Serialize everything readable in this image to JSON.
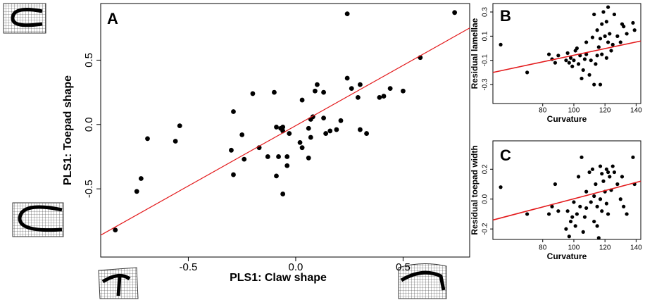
{
  "chart_data": [
    {
      "type": "scatter",
      "label": "A",
      "xlabel": "PLS1: Claw shape",
      "ylabel": "PLS1: Toepad shape",
      "color": "#000000",
      "xlim": [
        -0.908,
        0.81
      ],
      "ylim": [
        -1.03,
        0.94
      ],
      "xticks": [
        -0.5,
        {
          "value": 0,
          "label": "0.0"
        },
        0.5
      ],
      "yticks": [
        -0.5,
        {
          "value": 0,
          "label": "0.0"
        },
        0.5
      ],
      "x": [
        -0.84,
        -0.74,
        -0.72,
        -0.69,
        -0.54,
        -0.56,
        -0.29,
        -0.2,
        -0.1,
        -0.3,
        -0.29,
        -0.25,
        -0.24,
        -0.17,
        -0.13,
        -0.09,
        -0.07,
        -0.06,
        -0.06,
        -0.09,
        -0.08,
        -0.06,
        -0.04,
        -0.03,
        -0.04,
        0.03,
        0.07,
        0.08,
        0.02,
        0.03,
        0.06,
        0.06,
        0.07,
        0.09,
        0.1,
        0.13,
        0.13,
        0.14,
        0.16,
        0.19,
        0.21,
        0.24,
        0.26,
        0.29,
        0.3,
        0.3,
        0.33,
        0.39,
        0.41,
        0.44,
        0.5,
        0.58,
        0.24,
        0.74
      ],
      "values": [
        -0.82,
        -0.52,
        -0.42,
        -0.11,
        -0.01,
        -0.13,
        0.1,
        0.24,
        0.25,
        -0.2,
        -0.39,
        -0.08,
        -0.27,
        -0.18,
        -0.25,
        -0.02,
        -0.03,
        -0.05,
        -0.02,
        -0.4,
        -0.25,
        -0.54,
        -0.25,
        -0.07,
        -0.32,
        0.19,
        -0.1,
        0.06,
        -0.14,
        -0.18,
        -0.26,
        -0.03,
        0.04,
        0.26,
        0.31,
        0.05,
        0.25,
        -0.07,
        -0.05,
        -0.04,
        0.03,
        0.36,
        0.28,
        0.21,
        -0.04,
        0.31,
        -0.07,
        0.21,
        0.22,
        0.28,
        0.26,
        0.52,
        0.86,
        0.87
      ],
      "fit_line": {
        "x": [
          -0.908,
          0.81
        ],
        "y": [
          -0.86,
          0.75
        ],
        "color": "#e31a1c"
      }
    },
    {
      "type": "scatter",
      "label": "B",
      "xlabel": "Curvature",
      "ylabel": "Residual lamellae",
      "color": "#000000",
      "xlim": [
        48,
        143
      ],
      "ylim": [
        -0.457,
        0.37
      ],
      "xticks": [
        80,
        100,
        120,
        140
      ],
      "yticks": [
        -0.3,
        -0.1,
        0.1,
        0.3
      ],
      "x": [
        53,
        70,
        84,
        86,
        88,
        90,
        95,
        96,
        97,
        98,
        99,
        100,
        101,
        102,
        103,
        104,
        105,
        106,
        107,
        108,
        108,
        110,
        111,
        112,
        113,
        113,
        114,
        115,
        115,
        116,
        117,
        117,
        118,
        118,
        119,
        120,
        121,
        121,
        122,
        122,
        123,
        124,
        125,
        126,
        128,
        130,
        131,
        132,
        134,
        138,
        139
      ],
      "values": [
        0.03,
        -0.2,
        -0.05,
        -0.09,
        -0.12,
        -0.06,
        -0.1,
        -0.04,
        -0.12,
        -0.08,
        -0.15,
        -0.1,
        -0.02,
        0,
        -0.13,
        -0.06,
        -0.25,
        -0.18,
        -0.09,
        -0.05,
        0.05,
        -0.22,
        -0.1,
        0.09,
        -0.3,
        0.28,
        -0.13,
        0.15,
        -0.06,
        0.01,
        -0.3,
        0.08,
        0.2,
        -0.05,
        0.3,
        0.1,
        -0.08,
        0.22,
        0.34,
        0.05,
        0.12,
        -0.02,
        0.03,
        0.28,
        0.1,
        0.05,
        0.2,
        0.18,
        0.12,
        0.21,
        0.15
      ],
      "fit_line": {
        "x": [
          48,
          143
        ],
        "y": [
          -0.2,
          0.06
        ],
        "color": "#e31a1c"
      }
    },
    {
      "type": "scatter",
      "label": "C",
      "xlabel": "Curvature",
      "ylabel": "Residual toepad width",
      "color": "#000000",
      "xlim": [
        48,
        143
      ],
      "ylim": [
        -0.27,
        0.39
      ],
      "xticks": [
        80,
        100,
        120,
        140
      ],
      "yticks": [
        -0.2,
        {
          "value": 0,
          "label": "0.0"
        },
        0.2
      ],
      "x": [
        53,
        70,
        84,
        86,
        88,
        90,
        95,
        96,
        97,
        98,
        99,
        100,
        101,
        102,
        103,
        104,
        105,
        106,
        107,
        108,
        108,
        110,
        111,
        112,
        113,
        113,
        114,
        115,
        115,
        116,
        117,
        117,
        118,
        118,
        119,
        120,
        121,
        121,
        122,
        122,
        123,
        124,
        125,
        126,
        128,
        130,
        131,
        132,
        134,
        138,
        139
      ],
      "values": [
        0.08,
        -0.1,
        -0.1,
        -0.05,
        0.1,
        -0.08,
        -0.2,
        -0.08,
        -0.25,
        -0.15,
        -0.12,
        -0.02,
        -0.18,
        -0.1,
        0.15,
        -0.05,
        0.28,
        -0.22,
        -0.12,
        -0.06,
        0.05,
        0.18,
        -0.02,
        0.2,
        -0.15,
        0.02,
        0.1,
        -0.18,
        -0.05,
        -0.26,
        0,
        0.22,
        0.17,
        -0.08,
        0.12,
        0.05,
        -0.03,
        0.2,
        0.18,
        -0.1,
        0.15,
        0.06,
        0.22,
        0.18,
        0.1,
        0,
        0.15,
        -0.05,
        -0.1,
        0.28,
        0.1
      ],
      "fit_line": {
        "x": [
          48,
          143
        ],
        "y": [
          -0.14,
          0.12
        ],
        "color": "#e31a1c"
      }
    }
  ]
}
